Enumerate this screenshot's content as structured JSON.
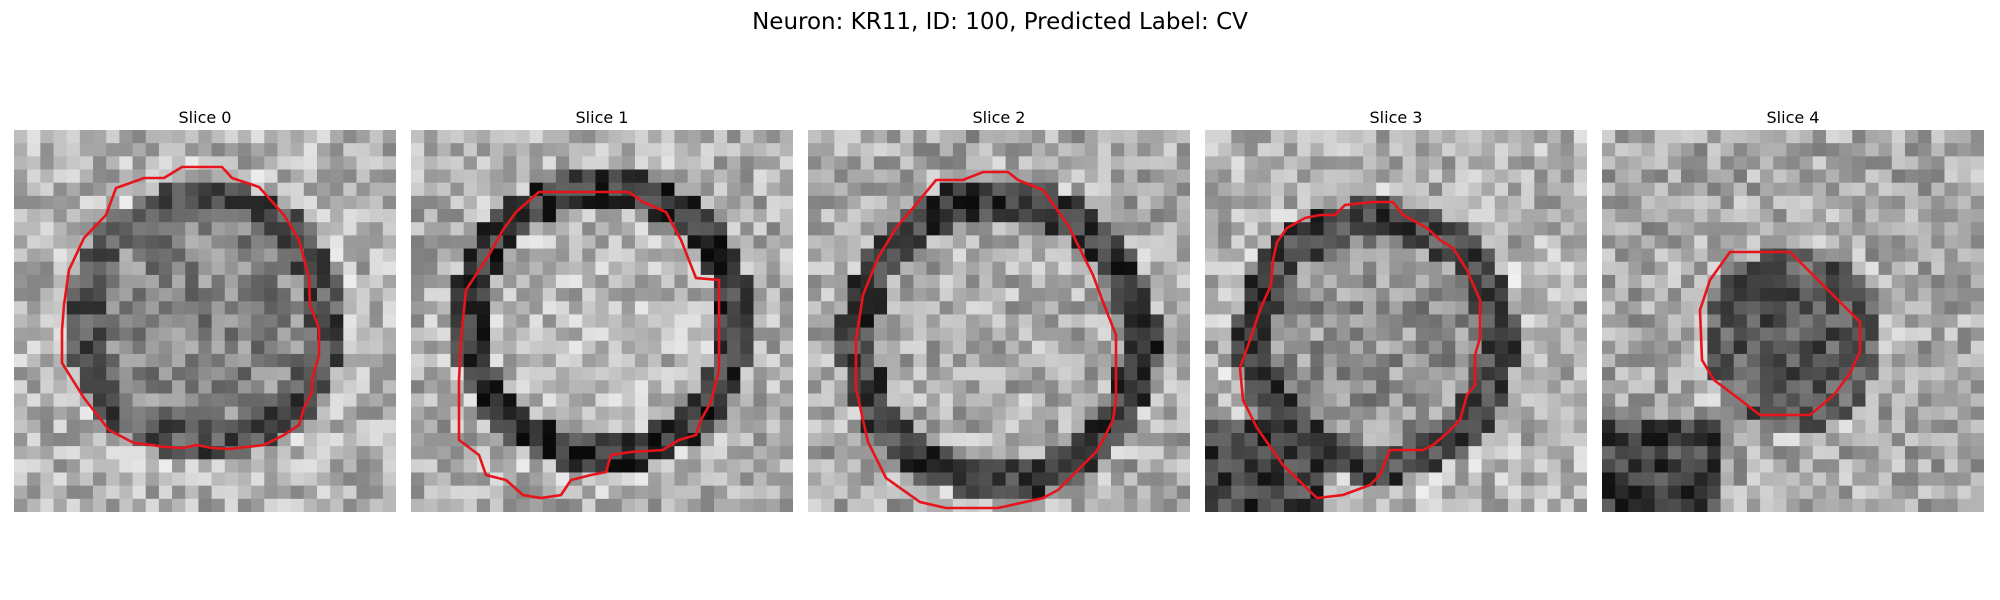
{
  "figure": {
    "title": "Neuron: KR11, ID: 100, Predicted Label: CV"
  },
  "panels": [
    {
      "title": "Slice 0"
    },
    {
      "title": "Slice 1"
    },
    {
      "title": "Slice 2"
    },
    {
      "title": "Slice 3"
    },
    {
      "title": "Slice 4"
    }
  ],
  "colors": {
    "contour": "#e8141c",
    "background": "#ffffff"
  },
  "colormap": "gray",
  "grid_size": [
    29,
    29
  ]
}
